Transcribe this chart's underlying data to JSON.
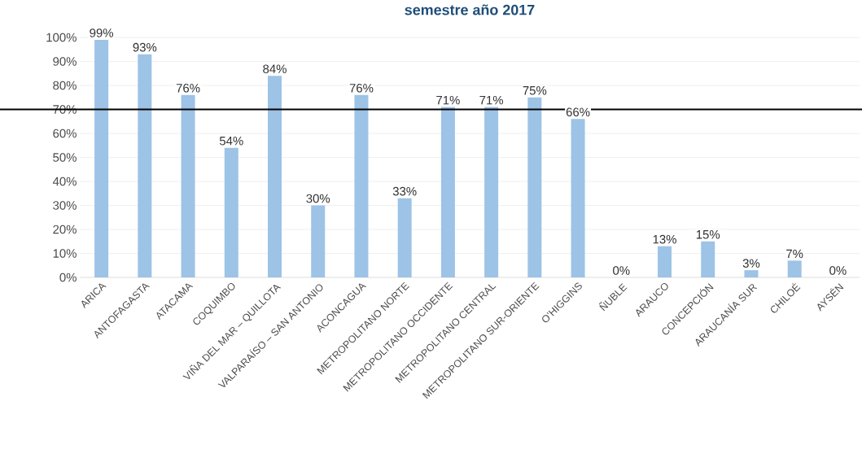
{
  "chart_data": {
    "type": "bar",
    "title": "semestre año 2017",
    "categories": [
      "ARICA",
      "ANTOFAGASTA",
      "ATACAMA",
      "COQUIMBO",
      "VIÑA DEL MAR – QUILLOTA",
      "VALPARAÍSO – SAN ANTONIO",
      "ACONCAGUA",
      "METROPOLITANO NORTE",
      "METROPOLITANO OCCIDENTE",
      "METROPOLITANO CENTRAL",
      "METROPOLITANO SUR-ORIENTE",
      "O’HIGGINS",
      "ÑUBLE",
      "ARAUCO",
      "CONCEPCIÓN",
      "ARAUCANÍA SUR",
      "CHILOÉ",
      "AYSÉN"
    ],
    "values": [
      99,
      93,
      76,
      54,
      84,
      30,
      76,
      33,
      71,
      71,
      75,
      66,
      0,
      13,
      15,
      3,
      7,
      0
    ],
    "value_labels": [
      "99%",
      "93%",
      "76%",
      "54%",
      "84%",
      "30%",
      "76%",
      "33%",
      "71%",
      "71%",
      "75%",
      "66%",
      "0%",
      "13%",
      "15%",
      "3%",
      "7%",
      "0%"
    ],
    "color": "#9dc3e6",
    "ylim": [
      0,
      100
    ],
    "yticks": [
      {
        "value": 0,
        "label": "0%"
      },
      {
        "value": 10,
        "label": "10%"
      },
      {
        "value": 20,
        "label": "20%"
      },
      {
        "value": 30,
        "label": "30%"
      },
      {
        "value": 40,
        "label": "40%"
      },
      {
        "value": 50,
        "label": "50%"
      },
      {
        "value": 60,
        "label": "60%"
      },
      {
        "value": 70,
        "label": "70%"
      },
      {
        "value": 80,
        "label": "80%"
      },
      {
        "value": 90,
        "label": "90%"
      },
      {
        "value": 100,
        "label": "100%"
      }
    ],
    "grid": "y",
    "ref_lines": [
      {
        "axis": "y",
        "value": 70,
        "color": "#000000"
      }
    ]
  }
}
